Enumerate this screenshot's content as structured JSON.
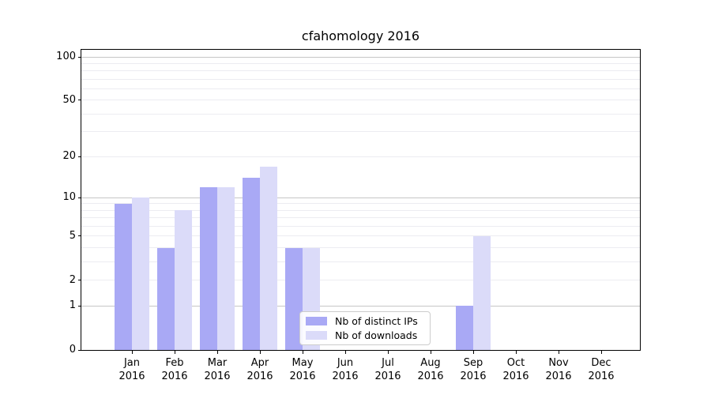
{
  "title": "cfahomology 2016",
  "chart_data": {
    "type": "bar",
    "title": "cfahomology 2016",
    "categories": [
      "Jan",
      "Feb",
      "Mar",
      "Apr",
      "May",
      "Jun",
      "Jul",
      "Aug",
      "Sep",
      "Oct",
      "Nov",
      "Dec"
    ],
    "x_year_label": "2016",
    "series": [
      {
        "name": "Nb of distinct IPs",
        "color": "#a9a9f5",
        "values": [
          9,
          4,
          12,
          14,
          4,
          0,
          0,
          0,
          1,
          0,
          0,
          0
        ]
      },
      {
        "name": "Nb of downloads",
        "color": "#dbdbf9",
        "values": [
          10,
          8,
          12,
          17,
          4,
          0,
          0,
          0,
          5,
          0,
          0,
          0
        ]
      }
    ],
    "xlabel": "",
    "ylabel": "",
    "y_scale": "log10(1+v)",
    "y_ticks": [
      0,
      1,
      2,
      5,
      10,
      20,
      50,
      100
    ],
    "y_major_gridlines": [
      1,
      10,
      100
    ],
    "y_minor_gridlines": [
      2,
      3,
      4,
      5,
      6,
      7,
      8,
      9,
      20,
      30,
      40,
      50,
      60,
      70,
      80,
      90
    ],
    "ylim": [
      0,
      112
    ],
    "grid": "on",
    "legend_position": "lower center"
  },
  "colors": {
    "bar_distinct_ips": "#a9a9f5",
    "bar_downloads": "#dbdbf9",
    "grid_major": "#c6c6c6",
    "grid_minor": "#ececf1",
    "axis": "#000000",
    "legend_border": "#cccccc"
  }
}
